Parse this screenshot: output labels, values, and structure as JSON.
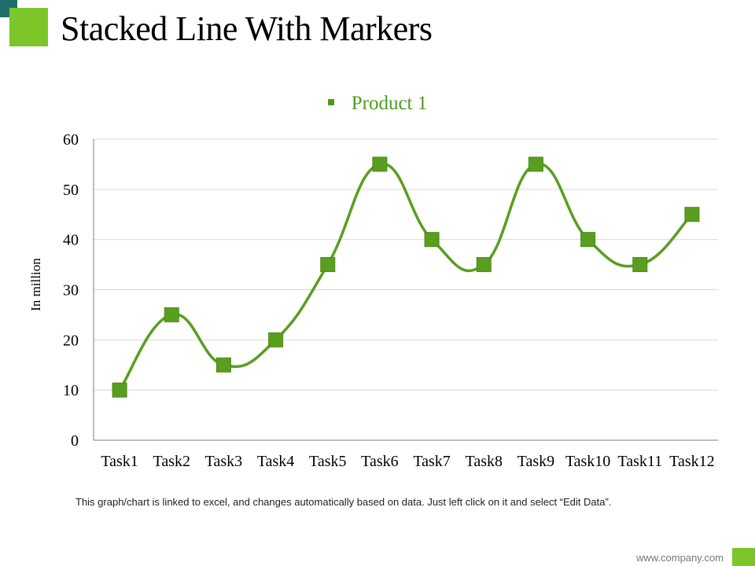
{
  "slide": {
    "title": "Stacked Line With Markers",
    "note": "This graph/chart is linked to excel, and changes automatically based on data. Just left click on it and select “Edit Data”.",
    "footer": "www.company.com"
  },
  "colors": {
    "accent": "#7cc62a",
    "series": "#5a9e1f",
    "teal": "#1f6e6a"
  },
  "chart_data": {
    "type": "line",
    "title": "",
    "xlabel": "",
    "ylabel": "In million",
    "ylim": [
      0,
      60
    ],
    "yticks": [
      0,
      10,
      20,
      30,
      40,
      50,
      60
    ],
    "grid": true,
    "legend": "top-center",
    "smooth": true,
    "markers": "square",
    "categories": [
      "Task1",
      "Task2",
      "Task3",
      "Task4",
      "Task5",
      "Task6",
      "Task7",
      "Task8",
      "Task9",
      "Task10",
      "Task11",
      "Task12"
    ],
    "series": [
      {
        "name": "Product 1",
        "values": [
          10,
          25,
          15,
          20,
          35,
          55,
          40,
          35,
          55,
          40,
          35,
          45
        ]
      }
    ]
  }
}
